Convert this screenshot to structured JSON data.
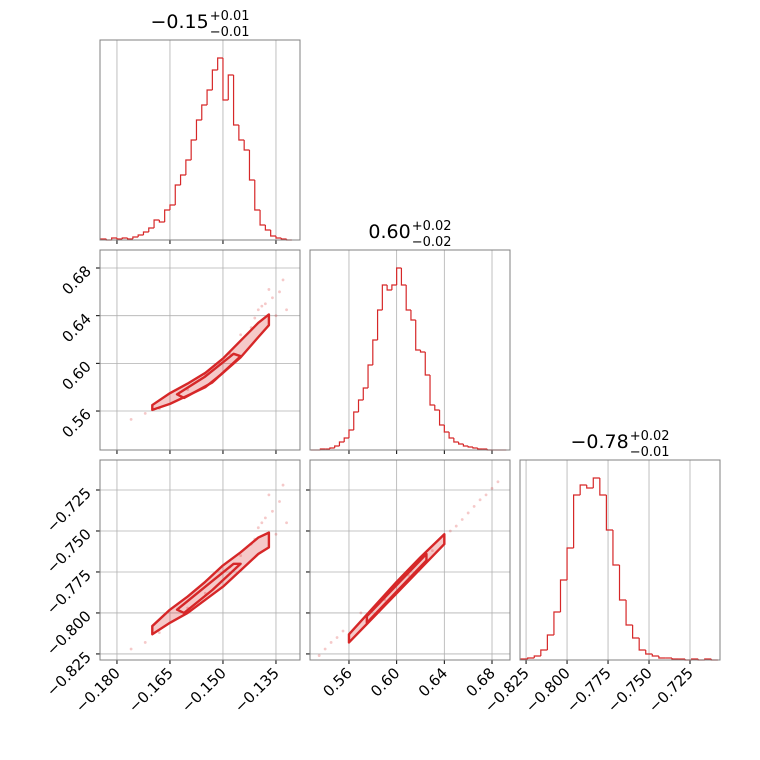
{
  "chart_data": {
    "type": "corner",
    "color": "#d62728",
    "grid": true,
    "params": [
      {
        "title": {
          "value": "−0.15",
          "plus": "+0.01",
          "minus": "−0.01"
        },
        "lim": [
          -0.1848,
          -0.1282
        ],
        "ticks": [
          {
            "value": -0.18,
            "label": "−0.180"
          },
          {
            "value": -0.165,
            "label": "−0.165"
          },
          {
            "value": -0.15,
            "label": "−0.150"
          },
          {
            "value": -0.135,
            "label": "−0.135"
          }
        ],
        "bins": [
          -0.1845,
          -0.183,
          -0.1815,
          -0.18,
          -0.1785,
          -0.177,
          -0.1755,
          -0.174,
          -0.1725,
          -0.171,
          -0.1695,
          -0.168,
          -0.1665,
          -0.165,
          -0.1635,
          -0.162,
          -0.1605,
          -0.159,
          -0.1575,
          -0.156,
          -0.1545,
          -0.153,
          -0.1515,
          -0.15,
          -0.1485,
          -0.147,
          -0.1455,
          -0.144,
          -0.1425,
          -0.141,
          -0.1395,
          -0.138,
          -0.1365,
          -0.135,
          -0.1335,
          -0.132,
          -0.1305
        ],
        "counts": [
          1,
          0,
          2,
          1,
          2,
          1,
          3,
          5,
          8,
          12,
          20,
          18,
          30,
          35,
          55,
          65,
          80,
          100,
          120,
          135,
          150,
          170,
          182,
          140,
          165,
          115,
          100,
          90,
          60,
          30,
          15,
          10,
          4,
          2,
          1,
          0
        ],
        "ylim": [
          0,
          200
        ]
      },
      {
        "title": {
          "value": "0.60",
          "plus": "+0.02",
          "minus": "−0.02"
        },
        "lim": [
          0.5273,
          0.6951
        ],
        "ticks": [
          0.56,
          {
            "value": 0.6,
            "label": "0.60"
          },
          0.64,
          0.68
        ],
        "bins": [
          0.528,
          0.532,
          0.536,
          0.54,
          0.544,
          0.548,
          0.552,
          0.556,
          0.56,
          0.564,
          0.568,
          0.572,
          0.576,
          0.58,
          0.584,
          0.588,
          0.592,
          0.596,
          0.6,
          0.604,
          0.608,
          0.612,
          0.616,
          0.62,
          0.624,
          0.628,
          0.632,
          0.636,
          0.64,
          0.644,
          0.648,
          0.652,
          0.656,
          0.66,
          0.664,
          0.668,
          0.672,
          0.676,
          0.68,
          0.684,
          0.688,
          0.692
        ],
        "counts": [
          0,
          0,
          1,
          1,
          2,
          4,
          8,
          12,
          20,
          38,
          50,
          62,
          85,
          110,
          140,
          165,
          160,
          165,
          182,
          165,
          140,
          130,
          100,
          98,
          75,
          45,
          40,
          25,
          18,
          12,
          8,
          6,
          4,
          3,
          2,
          1,
          1,
          0,
          0,
          0,
          0
        ],
        "ylim": [
          0,
          200
        ]
      },
      {
        "title": {
          "value": "−0.78",
          "plus": "+0.02",
          "minus": "−0.01"
        },
        "lim": [
          -0.8287,
          -0.7067
        ],
        "ticks": [
          {
            "value": -0.825,
            "label": "−0.825"
          },
          {
            "value": -0.8,
            "label": "−0.800"
          },
          {
            "value": -0.775,
            "label": "−0.775"
          },
          {
            "value": -0.75,
            "label": "−0.750"
          },
          {
            "value": -0.725,
            "label": "−0.725"
          }
        ],
        "bins": [
          -0.828,
          -0.824,
          -0.82,
          -0.816,
          -0.812,
          -0.808,
          -0.804,
          -0.8,
          -0.796,
          -0.792,
          -0.788,
          -0.784,
          -0.78,
          -0.776,
          -0.772,
          -0.768,
          -0.764,
          -0.76,
          -0.756,
          -0.752,
          -0.748,
          -0.744,
          -0.74,
          -0.736,
          -0.732,
          -0.728,
          -0.724,
          -0.72,
          -0.716,
          -0.712,
          -0.708
        ],
        "counts": [
          1,
          2,
          4,
          10,
          25,
          48,
          80,
          112,
          165,
          175,
          172,
          182,
          165,
          130,
          95,
          60,
          35,
          22,
          10,
          6,
          4,
          2,
          2,
          1,
          1,
          0,
          1,
          0,
          1,
          0
        ],
        "ylim": [
          0,
          200
        ]
      }
    ],
    "panels": [
      {
        "points": {
          "x": [
            -0.176,
            -0.172,
            -0.168,
            -0.16,
            -0.155,
            -0.148,
            -0.145,
            -0.142,
            -0.14,
            -0.138,
            -0.136,
            -0.135,
            -0.134,
            -0.133,
            -0.137,
            -0.139,
            -0.132,
            -0.141
          ],
          "y": [
            0.553,
            0.558,
            0.562,
            0.578,
            0.59,
            0.608,
            0.624,
            0.63,
            0.645,
            0.65,
            0.655,
            0.64,
            0.66,
            0.67,
            0.662,
            0.648,
            0.645,
            0.638
          ]
        },
        "contours": [
          {
            "x": [
              -0.17,
              -0.165,
              -0.16,
              -0.155,
              -0.15,
              -0.145,
              -0.14,
              -0.137,
              -0.137,
              -0.14,
              -0.145,
              -0.15,
              -0.155,
              -0.16,
              -0.165,
              -0.17
            ],
            "y": [
              0.565,
              0.575,
              0.583,
              0.592,
              0.604,
              0.619,
              0.634,
              0.641,
              0.632,
              0.622,
              0.605,
              0.592,
              0.58,
              0.573,
              0.566,
              0.561
            ]
          },
          {
            "x": [
              -0.163,
              -0.155,
              -0.147,
              -0.145,
              -0.153,
              -0.161
            ],
            "y": [
              0.574,
              0.589,
              0.608,
              0.606,
              0.584,
              0.571
            ]
          }
        ]
      },
      {
        "points": {
          "x": [
            -0.176,
            -0.172,
            -0.168,
            -0.16,
            -0.155,
            -0.148,
            -0.145,
            -0.142,
            -0.14,
            -0.138,
            -0.136,
            -0.135,
            -0.134,
            -0.133,
            -0.137,
            -0.139,
            -0.132,
            -0.141
          ],
          "y": [
            -0.822,
            -0.818,
            -0.812,
            -0.797,
            -0.788,
            -0.772,
            -0.765,
            -0.758,
            -0.748,
            -0.742,
            -0.738,
            -0.752,
            -0.732,
            -0.722,
            -0.728,
            -0.745,
            -0.745,
            -0.755
          ]
        },
        "contours": [
          {
            "x": [
              -0.17,
              -0.165,
              -0.16,
              -0.155,
              -0.15,
              -0.145,
              -0.14,
              -0.137,
              -0.137,
              -0.14,
              -0.145,
              -0.15,
              -0.155,
              -0.16,
              -0.165,
              -0.17
            ],
            "y": [
              -0.808,
              -0.798,
              -0.79,
              -0.781,
              -0.771,
              -0.763,
              -0.754,
              -0.751,
              -0.76,
              -0.764,
              -0.774,
              -0.784,
              -0.792,
              -0.8,
              -0.806,
              -0.813
            ]
          },
          {
            "x": [
              -0.163,
              -0.155,
              -0.147,
              -0.145,
              -0.153,
              -0.161
            ],
            "y": [
              -0.798,
              -0.784,
              -0.77,
              -0.77,
              -0.786,
              -0.8
            ]
          }
        ]
      },
      {
        "points": {
          "x": [
            0.535,
            0.54,
            0.545,
            0.55,
            0.555,
            0.57,
            0.59,
            0.61,
            0.63,
            0.645,
            0.655,
            0.66,
            0.665,
            0.67,
            0.675,
            0.68,
            0.685,
            0.65
          ],
          "y": [
            -0.826,
            -0.822,
            -0.818,
            -0.815,
            -0.811,
            -0.8,
            -0.792,
            -0.777,
            -0.762,
            -0.75,
            -0.743,
            -0.739,
            -0.735,
            -0.731,
            -0.728,
            -0.724,
            -0.72,
            -0.747
          ]
        },
        "contours": [
          {
            "x": [
              0.56,
              0.58,
              0.6,
              0.62,
              0.64,
              0.64,
              0.62,
              0.6,
              0.58,
              0.56
            ],
            "y": [
              -0.813,
              -0.797,
              -0.781,
              -0.766,
              -0.752,
              -0.758,
              -0.773,
              -0.788,
              -0.803,
              -0.818
            ]
          },
          {
            "x": [
              0.575,
              0.6,
              0.625,
              0.625,
              0.6,
              0.575
            ],
            "y": [
              -0.802,
              -0.783,
              -0.764,
              -0.768,
              -0.787,
              -0.806
            ]
          }
        ]
      }
    ]
  }
}
